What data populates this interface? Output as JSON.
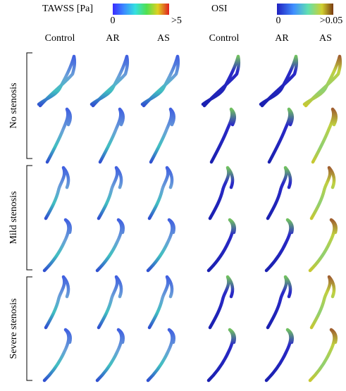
{
  "legends": [
    {
      "title": "TAWSS [Pa]",
      "min_label": "0",
      "max_label": ">5"
    },
    {
      "title": "OSI",
      "min_label": "0",
      "max_label": ">0.05"
    }
  ],
  "columns": [
    "Control",
    "AR",
    "AS",
    "Control",
    "AR",
    "AS"
  ],
  "rows": [
    "No stenosis",
    "Mild stenosis",
    "Severe stenosis"
  ]
}
